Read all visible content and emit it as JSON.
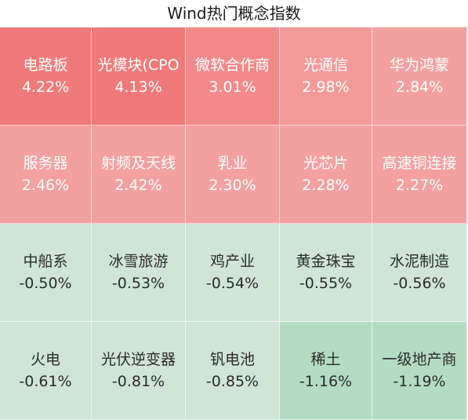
{
  "chart_data": {
    "type": "heatmap",
    "title": "Wind热门概念指数",
    "unit": "%",
    "cells": [
      {
        "name": "电路板",
        "value": 4.22,
        "label": "4.22%",
        "color": "#f07a7a"
      },
      {
        "name": "光模块(CPO",
        "value": 4.13,
        "label": "4.13%",
        "color": "#f07a7a"
      },
      {
        "name": "微软合作商",
        "value": 3.01,
        "label": "3.01%",
        "color": "#f28a8a"
      },
      {
        "name": "光通信",
        "value": 2.98,
        "label": "2.98%",
        "color": "#f29a9a"
      },
      {
        "name": "华为鸿蒙",
        "value": 2.84,
        "label": "2.84%",
        "color": "#f2a0a0"
      },
      {
        "name": "服务器",
        "value": 2.46,
        "label": "2.46%",
        "color": "#f2a0a0"
      },
      {
        "name": "射频及天线",
        "value": 2.42,
        "label": "2.42%",
        "color": "#f2a0a0"
      },
      {
        "name": "乳业",
        "value": 2.3,
        "label": "2.30%",
        "color": "#f2a0a0"
      },
      {
        "name": "光芯片",
        "value": 2.28,
        "label": "2.28%",
        "color": "#f2a0a0"
      },
      {
        "name": "高速铜连接",
        "value": 2.27,
        "label": "2.27%",
        "color": "#f2a0a0"
      },
      {
        "name": "中船系",
        "value": -0.5,
        "label": "-0.50%",
        "color": "#cfe5d8"
      },
      {
        "name": "冰雪旅游",
        "value": -0.53,
        "label": "-0.53%",
        "color": "#cfe5d8"
      },
      {
        "name": "鸡产业",
        "value": -0.54,
        "label": "-0.54%",
        "color": "#cfe5d8"
      },
      {
        "name": "黄金珠宝",
        "value": -0.55,
        "label": "-0.55%",
        "color": "#cfe5d8"
      },
      {
        "name": "水泥制造",
        "value": -0.56,
        "label": "-0.56%",
        "color": "#cfe5d8"
      },
      {
        "name": "火电",
        "value": -0.61,
        "label": "-0.61%",
        "color": "#cfe5d8"
      },
      {
        "name": "光伏逆变器",
        "value": -0.81,
        "label": "-0.81%",
        "color": "#cfe5d8"
      },
      {
        "name": "钒电池",
        "value": -0.85,
        "label": "-0.85%",
        "color": "#cfe5d8"
      },
      {
        "name": "稀土",
        "value": -1.16,
        "label": "-1.16%",
        "color": "#b3dcc2"
      },
      {
        "name": "一级地产商",
        "value": -1.19,
        "label": "-1.19%",
        "color": "#b3dcc2"
      }
    ],
    "grid": {
      "columns": 5,
      "rows": 4
    },
    "colors": {
      "title_text": "#1a1a1a",
      "positive_text": "#ffffff",
      "negative_text": "#2b2b2b"
    }
  }
}
